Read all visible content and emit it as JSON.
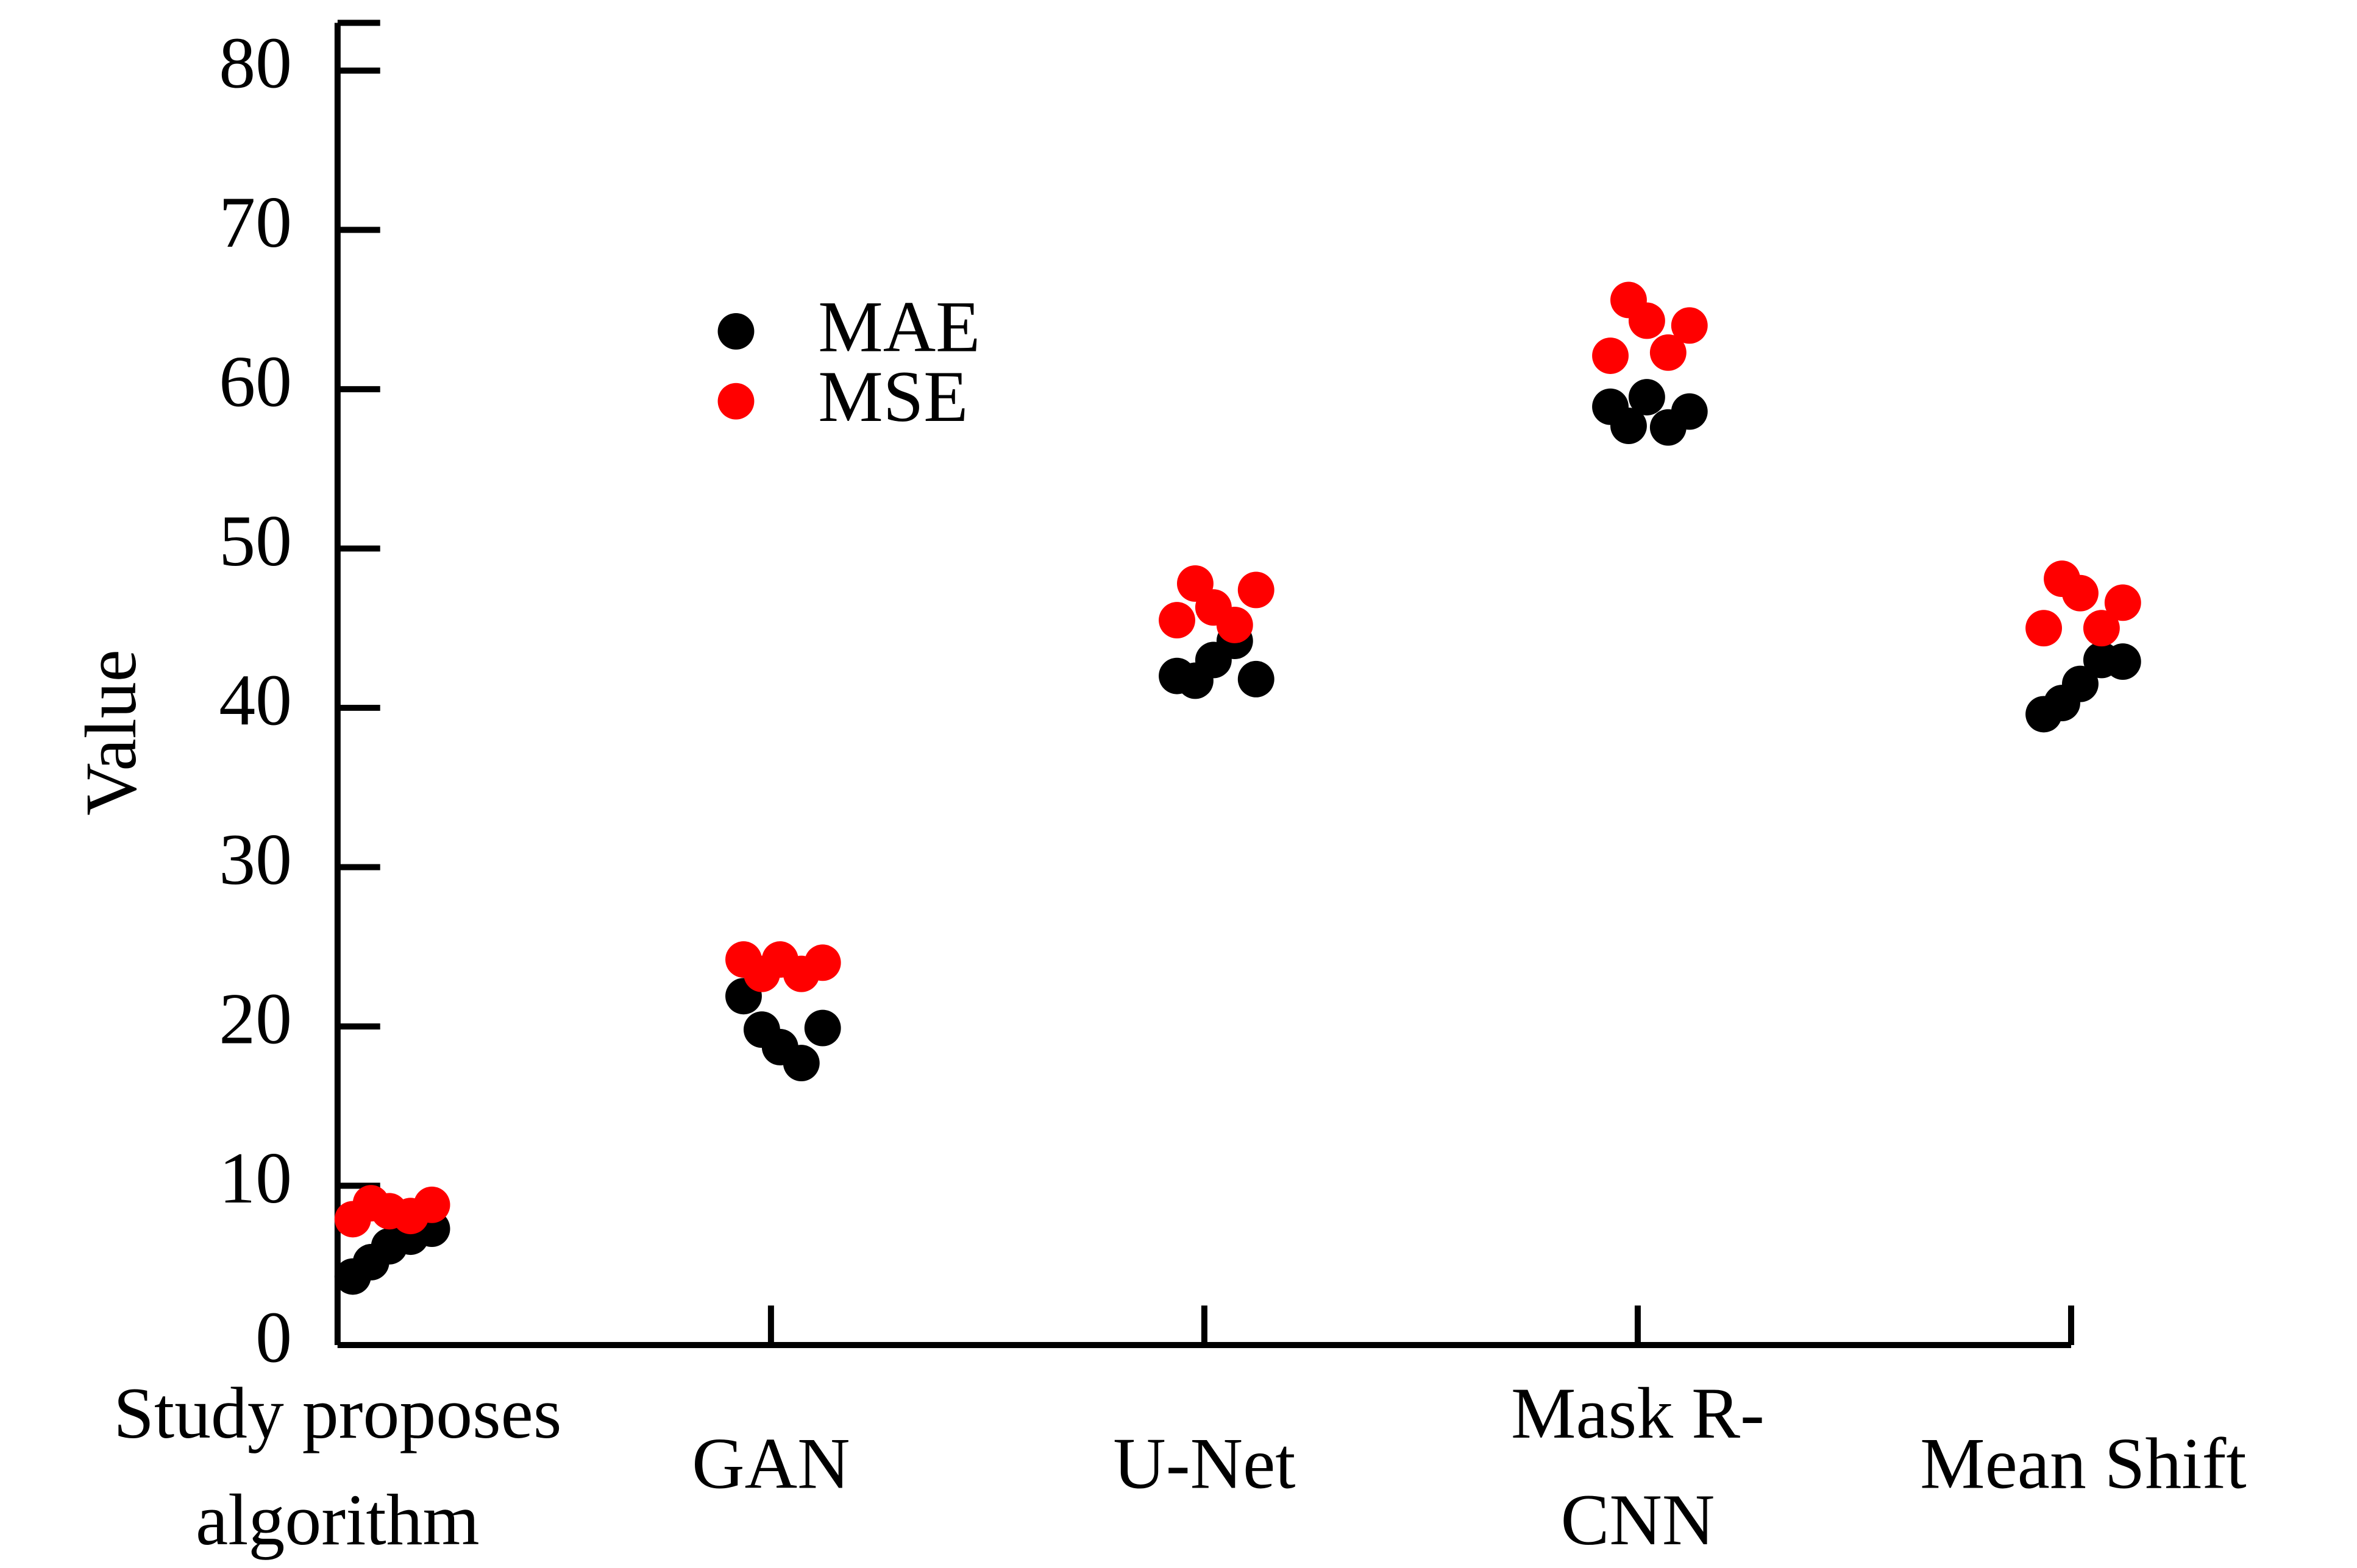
{
  "chart_data": {
    "type": "strip",
    "ylabel": "Value",
    "categories": [
      [
        "Study proposes",
        "algorithm"
      ],
      [
        "GAN"
      ],
      [
        "U-Net"
      ],
      [
        "Mask R-",
        "CNN"
      ],
      [
        "Mean Shift"
      ]
    ],
    "series": [
      {
        "name": "MAE",
        "color": "#000000",
        "values": [
          [
            4.3,
            5.2,
            6.2,
            6.8,
            7.3
          ],
          [
            21.9,
            19.8,
            18.7,
            17.7,
            19.9
          ],
          [
            42.0,
            41.7,
            43.0,
            44.2,
            41.8
          ],
          [
            58.9,
            57.7,
            59.5,
            57.6,
            58.6
          ],
          [
            39.6,
            40.3,
            41.5,
            43.0,
            42.9
          ]
        ]
      },
      {
        "name": "MSE",
        "color": "#ff0000",
        "values": [
          [
            7.9,
            8.9,
            8.4,
            8.1,
            8.8
          ],
          [
            24.2,
            23.3,
            24.2,
            23.3,
            24.0
          ],
          [
            45.5,
            47.8,
            46.3,
            45.2,
            47.4
          ],
          [
            62.1,
            65.6,
            64.3,
            62.3,
            64.0
          ],
          [
            45.0,
            48.1,
            47.2,
            45.0,
            46.6
          ]
        ]
      }
    ],
    "ylim": [
      0,
      83
    ],
    "yticks": [
      0,
      10,
      20,
      30,
      40,
      50,
      60,
      70,
      80
    ]
  }
}
